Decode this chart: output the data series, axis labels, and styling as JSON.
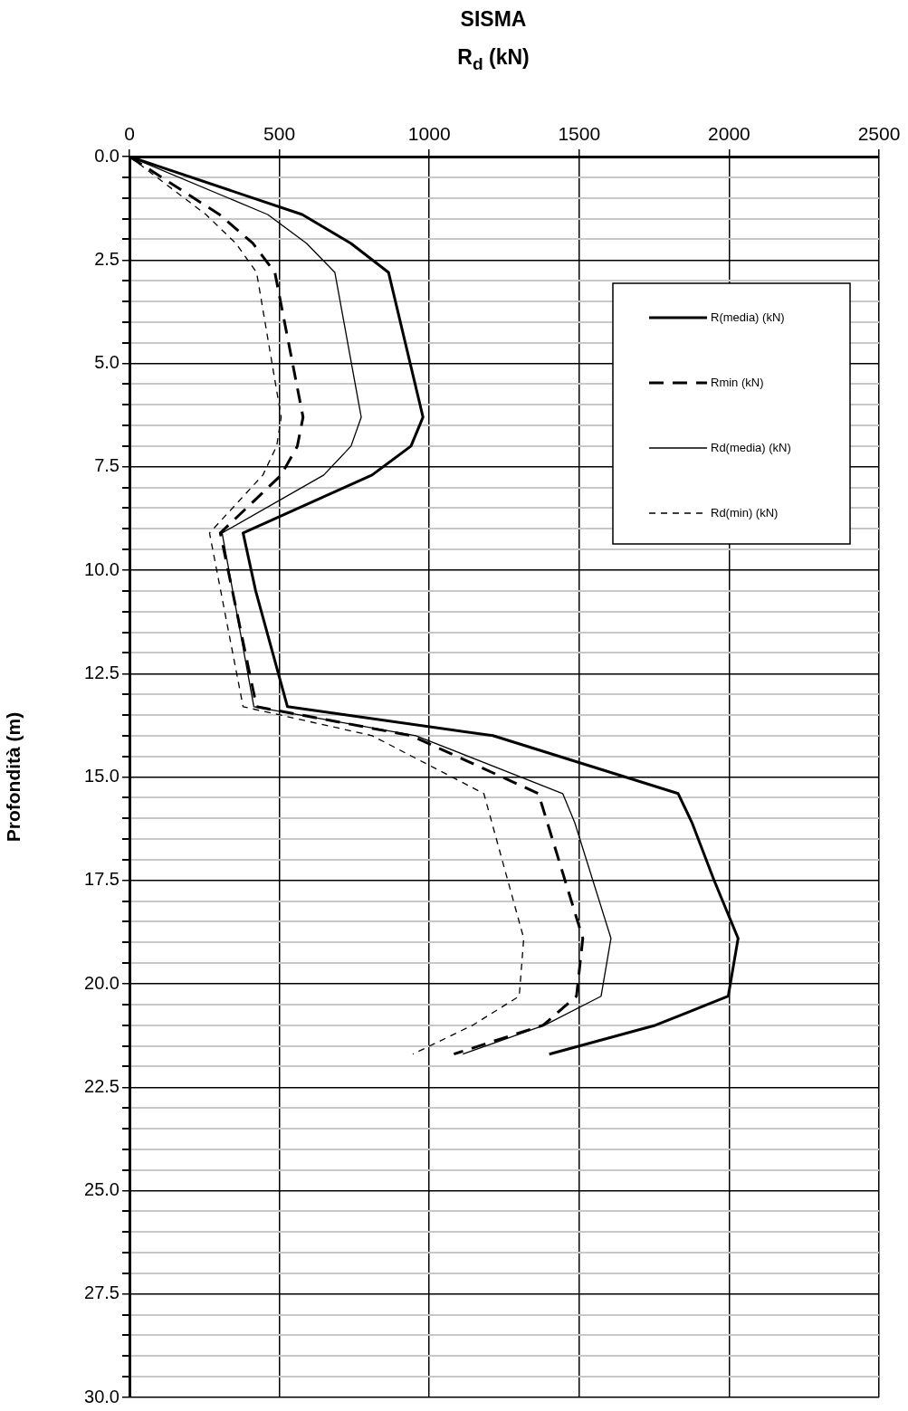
{
  "chart_data": {
    "type": "line",
    "title": "SISMA",
    "xlabel": "R$_{d}$ (kN)",
    "ylabel": "Profondità (m)",
    "xlim": [
      0,
      2500
    ],
    "xticks": [
      0,
      500,
      1000,
      1500,
      2000,
      2500
    ],
    "ylim": [
      30,
      0
    ],
    "yticks": [
      {
        "value": 0,
        "label": "0.0"
      },
      {
        "value": 0.5,
        "label": null
      },
      {
        "value": 1,
        "label": null
      },
      {
        "value": 1.5,
        "label": null
      },
      {
        "value": 2,
        "label": null
      },
      2.5,
      {
        "value": 3,
        "label": null
      },
      {
        "value": 3.5,
        "label": null
      },
      {
        "value": 4,
        "label": null
      },
      {
        "value": 4.5,
        "label": null
      },
      {
        "value": 5,
        "label": "5.0"
      },
      {
        "value": 5.5,
        "label": null
      },
      {
        "value": 6,
        "label": null
      },
      {
        "value": 6.5,
        "label": null
      },
      {
        "value": 7,
        "label": null
      },
      7.5,
      {
        "value": 8,
        "label": null
      },
      {
        "value": 8.5,
        "label": null
      },
      {
        "value": 9,
        "label": null
      },
      {
        "value": 9.5,
        "label": null
      },
      {
        "value": 10,
        "label": "10.0"
      },
      {
        "value": 10.5,
        "label": null
      },
      {
        "value": 11,
        "label": null
      },
      {
        "value": 11.5,
        "label": null
      },
      {
        "value": 12,
        "label": null
      },
      12.5,
      {
        "value": 13,
        "label": null
      },
      {
        "value": 13.5,
        "label": null
      },
      {
        "value": 14,
        "label": null
      },
      {
        "value": 14.5,
        "label": null
      },
      {
        "value": 15,
        "label": "15.0"
      },
      {
        "value": 15.5,
        "label": null
      },
      {
        "value": 16,
        "label": null
      },
      {
        "value": 16.5,
        "label": null
      },
      {
        "value": 17,
        "label": null
      },
      17.5,
      {
        "value": 18,
        "label": null
      },
      {
        "value": 18.5,
        "label": null
      },
      {
        "value": 19,
        "label": null
      },
      {
        "value": 19.5,
        "label": null
      },
      {
        "value": 20,
        "label": "20.0"
      },
      {
        "value": 20.5,
        "label": null
      },
      {
        "value": 21,
        "label": null
      },
      {
        "value": 21.5,
        "label": null
      },
      {
        "value": 22,
        "label": null
      },
      22.5,
      {
        "value": 23,
        "label": null
      },
      {
        "value": 23.5,
        "label": null
      },
      {
        "value": 24,
        "label": null
      },
      {
        "value": 24.5,
        "label": null
      },
      {
        "value": 25,
        "label": "25.0"
      },
      {
        "value": 25.5,
        "label": null
      },
      {
        "value": 26,
        "label": null
      },
      {
        "value": 26.5,
        "label": null
      },
      {
        "value": 27,
        "label": null
      },
      27.5,
      {
        "value": 28,
        "label": null
      },
      {
        "value": 28.5,
        "label": null
      },
      {
        "value": 29,
        "label": null
      },
      {
        "value": 29.5,
        "label": null
      },
      {
        "value": 30,
        "label": "30.0"
      }
    ],
    "grid": true,
    "legend": "top right",
    "marker": "none",
    "series": [
      {
        "name": "R(media) (kN)",
        "color": "#000000",
        "line_style": "solid",
        "x": [
          0,
          576,
          739,
          864,
          979,
          939,
          809,
          379,
          421,
          527,
          1212,
          1830,
          1876,
          1950,
          2030,
          1997,
          1755,
          1400
        ],
        "values": [
          0,
          1.4,
          2.1,
          2.8,
          6.3,
          7.0,
          7.7,
          9.1,
          10.5,
          13.3,
          14.0,
          15.4,
          16.1,
          17.5,
          18.9,
          20.3,
          21.0,
          21.7
        ]
      },
      {
        "name": "Rmin (kN)",
        "color": "#000000",
        "line_style": "dashed",
        "x": [
          0,
          300,
          412,
          485,
          579,
          560,
          506,
          303,
          424,
          940,
          1364,
          1512,
          1491,
          1380,
          1082
        ],
        "values": [
          0,
          1.4,
          2.1,
          2.8,
          6.3,
          7.0,
          7.7,
          9.1,
          13.3,
          14.0,
          15.4,
          18.9,
          20.3,
          21.0,
          21.7
        ]
      },
      {
        "name": "Rd(media) (kN)",
        "color": "#000000",
        "line_style": "solid",
        "x": [
          0,
          461,
          591,
          685,
          773,
          739,
          648,
          309,
          415,
          955,
          1445,
          1485,
          1606,
          1573,
          1385,
          1112
        ],
        "values": [
          0,
          1.4,
          2.1,
          2.8,
          6.3,
          7.0,
          7.7,
          9.1,
          13.3,
          14.0,
          15.4,
          16.1,
          18.9,
          20.3,
          21.0,
          21.7
        ]
      },
      {
        "name": "Rd(min) (kN)",
        "color": "#000000",
        "line_style": "dashed",
        "x": [
          0,
          255,
          355,
          424,
          506,
          491,
          445,
          267,
          379,
          809,
          1182,
          1315,
          1300,
          1145,
          945
        ],
        "values": [
          0,
          1.4,
          2.1,
          2.8,
          6.3,
          7.0,
          7.7,
          9.1,
          13.3,
          14.0,
          15.4,
          18.9,
          20.3,
          21.0,
          21.7
        ]
      }
    ]
  }
}
